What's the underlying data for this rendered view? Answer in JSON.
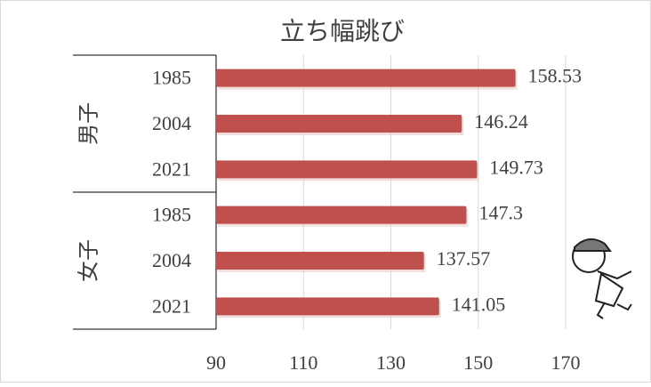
{
  "chart_data": {
    "type": "bar",
    "title": "立ち幅跳び",
    "groups": [
      {
        "label": "男子",
        "categories": [
          "1985",
          "2004",
          "2021"
        ],
        "values": [
          158.53,
          146.24,
          149.73
        ]
      },
      {
        "label": "女子",
        "categories": [
          "1985",
          "2004",
          "2021"
        ],
        "values": [
          147.3,
          137.57,
          141.05
        ]
      }
    ],
    "color": "#c0504d",
    "xlim": [
      90,
      170
    ],
    "xticks": [
      90,
      110,
      130,
      150,
      170
    ],
    "grid": true
  }
}
